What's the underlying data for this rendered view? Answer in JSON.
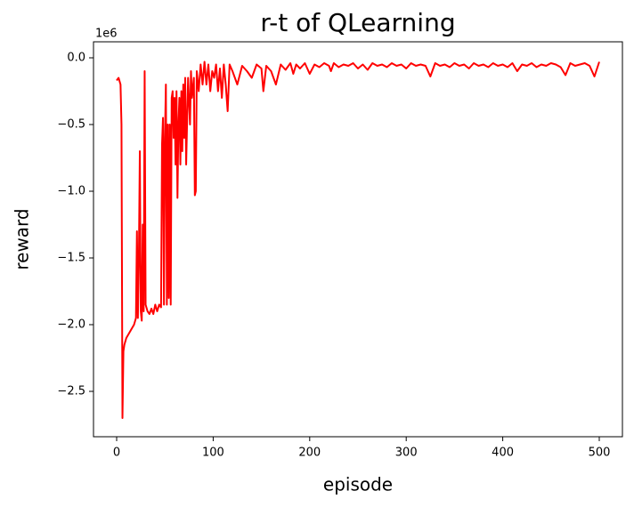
{
  "chart_data": {
    "type": "line",
    "title": "r-t of QLearning",
    "x_label": "episode",
    "y_label": "reward",
    "y_offset_label": "1e6",
    "color": "#ff0000",
    "x": [
      0,
      2,
      4,
      5,
      6,
      7,
      8,
      10,
      14,
      18,
      20,
      21,
      22,
      23,
      24,
      25,
      26,
      27,
      28,
      29,
      30,
      32,
      34,
      36,
      38,
      40,
      42,
      44,
      46,
      47,
      48,
      49,
      50,
      51,
      52,
      53,
      54,
      55,
      56,
      57,
      58,
      59,
      60,
      61,
      62,
      63,
      64,
      65,
      66,
      67,
      68,
      69,
      70,
      71,
      72,
      74,
      76,
      77,
      78,
      80,
      81,
      82,
      83,
      85,
      87,
      89,
      91,
      93,
      95,
      97,
      99,
      101,
      103,
      105,
      107,
      109,
      111,
      113,
      115,
      117,
      120,
      125,
      130,
      135,
      140,
      145,
      150,
      152,
      155,
      160,
      165,
      170,
      175,
      180,
      183,
      186,
      190,
      195,
      200,
      205,
      210,
      215,
      220,
      222,
      225,
      230,
      235,
      240,
      245,
      250,
      255,
      260,
      265,
      270,
      275,
      280,
      285,
      290,
      295,
      300,
      305,
      310,
      315,
      320,
      325,
      330,
      335,
      340,
      345,
      350,
      355,
      360,
      365,
      370,
      375,
      380,
      385,
      390,
      395,
      400,
      405,
      410,
      415,
      420,
      425,
      430,
      435,
      440,
      445,
      450,
      455,
      460,
      465,
      470,
      475,
      480,
      485,
      490,
      495,
      500
    ],
    "values": [
      -0.17,
      -0.15,
      -0.2,
      -0.5,
      -2.7,
      -2.2,
      -2.15,
      -2.1,
      -2.05,
      -2.0,
      -1.95,
      -1.3,
      -1.95,
      -1.5,
      -0.7,
      -1.9,
      -1.97,
      -1.25,
      -1.9,
      -0.1,
      -1.85,
      -1.9,
      -1.92,
      -1.88,
      -1.92,
      -1.85,
      -1.9,
      -1.85,
      -1.87,
      -0.65,
      -0.45,
      -1.85,
      -0.6,
      -0.2,
      -1.85,
      -0.5,
      -1.8,
      -0.5,
      -1.85,
      -0.3,
      -0.25,
      -0.6,
      -0.3,
      -0.8,
      -0.25,
      -1.05,
      -0.5,
      -0.3,
      -0.8,
      -0.25,
      -0.7,
      -0.2,
      -0.6,
      -0.15,
      -0.8,
      -0.15,
      -0.5,
      -0.1,
      -0.3,
      -0.15,
      -1.03,
      -1.0,
      -0.1,
      -0.25,
      -0.05,
      -0.2,
      -0.03,
      -0.2,
      -0.05,
      -0.25,
      -0.1,
      -0.15,
      -0.05,
      -0.25,
      -0.08,
      -0.3,
      -0.05,
      -0.2,
      -0.4,
      -0.05,
      -0.1,
      -0.2,
      -0.06,
      -0.1,
      -0.15,
      -0.05,
      -0.08,
      -0.25,
      -0.06,
      -0.1,
      -0.2,
      -0.05,
      -0.09,
      -0.04,
      -0.12,
      -0.05,
      -0.08,
      -0.04,
      -0.12,
      -0.05,
      -0.07,
      -0.04,
      -0.06,
      -0.1,
      -0.04,
      -0.07,
      -0.05,
      -0.06,
      -0.04,
      -0.08,
      -0.05,
      -0.09,
      -0.04,
      -0.06,
      -0.05,
      -0.07,
      -0.04,
      -0.06,
      -0.05,
      -0.08,
      -0.04,
      -0.06,
      -0.05,
      -0.06,
      -0.14,
      -0.04,
      -0.06,
      -0.05,
      -0.07,
      -0.04,
      -0.06,
      -0.05,
      -0.08,
      -0.04,
      -0.06,
      -0.05,
      -0.07,
      -0.04,
      -0.06,
      -0.05,
      -0.07,
      -0.04,
      -0.1,
      -0.05,
      -0.06,
      -0.04,
      -0.07,
      -0.05,
      -0.06,
      -0.04,
      -0.05,
      -0.07,
      -0.13,
      -0.04,
      -0.06,
      -0.05,
      -0.04,
      -0.06,
      -0.14,
      -0.03
    ],
    "xlim": [
      -24,
      524
    ],
    "ylim": [
      -2.84,
      0.12
    ],
    "xticks": [
      0,
      100,
      200,
      300,
      400,
      500
    ],
    "yticks": [
      {
        "value": 0,
        "label": "0.0"
      },
      {
        "value": -0.5,
        "label": "−0.5"
      },
      {
        "value": -1.0,
        "label": "−1.0"
      },
      {
        "value": -1.5,
        "label": "−1.5"
      },
      {
        "value": -2.0,
        "label": "−2.0"
      },
      {
        "value": -2.5,
        "label": "−2.5"
      }
    ]
  }
}
